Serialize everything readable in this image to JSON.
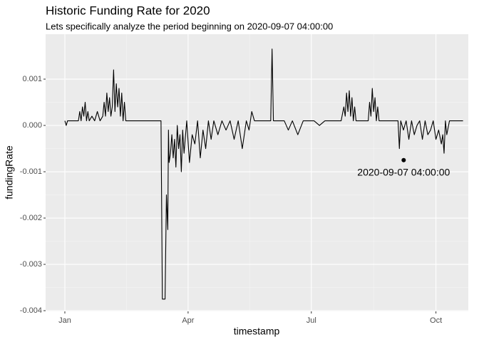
{
  "chart_data": {
    "type": "line",
    "title": "Historic Funding Rate for 2020",
    "subtitle": "Lets specifically analyze the period beginning on 2020-09-07 04:00:00",
    "x_label": "timestamp",
    "y_label": "fundingRate",
    "grid": true,
    "xlim": [
      -14.2,
      297.9
    ],
    "ylim": [
      -0.004015,
      0.00197
    ],
    "xticks": [
      {
        "value": 0,
        "label": "Jan"
      },
      {
        "value": 91,
        "label": "Apr"
      },
      {
        "value": 182,
        "label": "Jul"
      },
      {
        "value": 274,
        "label": "Oct"
      }
    ],
    "yticks": [
      -0.004,
      -0.003,
      -0.002,
      -0.001,
      {
        "value": 0,
        "label": "0.000"
      },
      0.001
    ],
    "series": [
      {
        "color": "#000000",
        "x": [
          0,
          1,
          2,
          4,
          6,
          8,
          10,
          11,
          12,
          13,
          14,
          15,
          16,
          17,
          18,
          20,
          22,
          24,
          26,
          28,
          29,
          30,
          31,
          32,
          33,
          34,
          35,
          36,
          37,
          38,
          39,
          40,
          41,
          42,
          43,
          44,
          45,
          48,
          52,
          56,
          60,
          64,
          68,
          70,
          71,
          72,
          73,
          74,
          75,
          76,
          76.5,
          77,
          78,
          79,
          80,
          81,
          82,
          83,
          84,
          85,
          86,
          87,
          88,
          90,
          92,
          94,
          96,
          98,
          100,
          102,
          104,
          106,
          108,
          110,
          113,
          116,
          119,
          122,
          125,
          128,
          131,
          134,
          136,
          138,
          140,
          144,
          148,
          152,
          153,
          154,
          158,
          162,
          165,
          168,
          172,
          176,
          180,
          184,
          188,
          192,
          196,
          200,
          204,
          206,
          207,
          208,
          209,
          210,
          211,
          212,
          213,
          214,
          215,
          216,
          218,
          220,
          222,
          224,
          225,
          226,
          227,
          228,
          229,
          230,
          231,
          232,
          236,
          240,
          244,
          246,
          247,
          248,
          250,
          252,
          254,
          256,
          258,
          260,
          262,
          264,
          266,
          268,
          270,
          272,
          274,
          276,
          278,
          279,
          280,
          281,
          282,
          284,
          286,
          290,
          294
        ],
        "values": [
          0.0001,
          0,
          0.0001,
          0.0001,
          0.0001,
          0.0001,
          0.0001,
          0.0003,
          0.0001,
          0.0004,
          0.0002,
          0.0005,
          0.0001,
          0.0003,
          0.0001,
          0.0002,
          0.0001,
          0.0003,
          0.0001,
          0.0002,
          0.0005,
          0.0002,
          0.0007,
          0.0003,
          0.0006,
          0.0002,
          0.0004,
          0.0012,
          0.0003,
          0.0009,
          0.0004,
          0.0008,
          0.0002,
          0.0007,
          0.0001,
          0.0005,
          0.0001,
          0.0001,
          0.0001,
          0.0001,
          0.0001,
          0.0001,
          0.0001,
          0.0001,
          0.0001,
          -0.00375,
          -0.00375,
          -0.00375,
          -0.0015,
          -0.00225,
          -0.0001,
          -0.0008,
          -0.0006,
          -0.0002,
          -0.0007,
          -0.0003,
          -0.0009,
          0,
          -0.0005,
          -0.0002,
          -0.001,
          -0.0001,
          -0.0006,
          0.0001,
          -0.0008,
          -0.0002,
          -0.0004,
          0.0001,
          -0.0007,
          -0.0001,
          -0.0005,
          0.0001,
          -0.0003,
          0.0001,
          -0.0002,
          0.0001,
          -0.0001,
          0.0001,
          -0.0003,
          0.0001,
          -0.0005,
          0.0001,
          -0.0001,
          0.0003,
          0.0001,
          0.0001,
          0.0001,
          0.0001,
          0.00165,
          0.0001,
          0.0001,
          0.0001,
          -0.0001,
          0.0001,
          -0.0002,
          0.0001,
          0.0001,
          0.0001,
          0,
          0.0001,
          0.0001,
          0.0001,
          0.0001,
          0.0004,
          0.0002,
          0.0007,
          0.0003,
          0.00075,
          0.0002,
          0.0006,
          0.0001,
          0.0004,
          0.0001,
          0.0001,
          0.0001,
          0.0001,
          0.0001,
          0.0001,
          0.0005,
          0.0002,
          0.0008,
          0.0003,
          0.0006,
          0.0001,
          0.0004,
          0.0001,
          0.0001,
          0.0001,
          0.0001,
          0.0001,
          -0.0005,
          0.0001,
          -0.0001,
          0.0001,
          -0.0003,
          0.0001,
          -0.0002,
          0,
          0.0001,
          -0.0003,
          0.0001,
          -0.0002,
          -0.0001,
          0.0001,
          -0.0003,
          -0.0001,
          -0.0004,
          -0.0002,
          -0.0006,
          0.0001,
          -0.0002,
          0.0001,
          0.0001,
          0.0001,
          0.0001
        ]
      }
    ],
    "annotations": [
      {
        "x": 250.17,
        "y": -0.00075,
        "label": "2020-09-07 04:00:00"
      }
    ]
  }
}
